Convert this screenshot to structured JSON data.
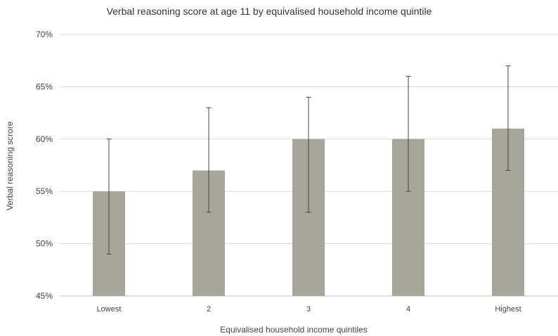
{
  "chart_data": {
    "type": "bar",
    "title": "Verbal reasoning score at age 11 by equivalised household income quintile",
    "xlabel": "Equivalised household income quintiles",
    "ylabel": "Verbal reasoning scrore",
    "categories": [
      "Lowest",
      "2",
      "3",
      "4",
      "Highest"
    ],
    "values": [
      55,
      57,
      60,
      60,
      61
    ],
    "error_low": [
      49,
      53,
      53,
      55,
      57
    ],
    "error_high": [
      60,
      63,
      64,
      66,
      67
    ],
    "ylim": [
      45,
      70
    ],
    "yticks": [
      45,
      50,
      55,
      60,
      65,
      70
    ],
    "ytick_labels": [
      "45%",
      "50%",
      "55%",
      "60%",
      "65%",
      "70%"
    ],
    "grid": true,
    "legend": "none",
    "bar_color": "#a6a69b",
    "error_color": "#444444",
    "grid_color": "#d9d9d9"
  }
}
